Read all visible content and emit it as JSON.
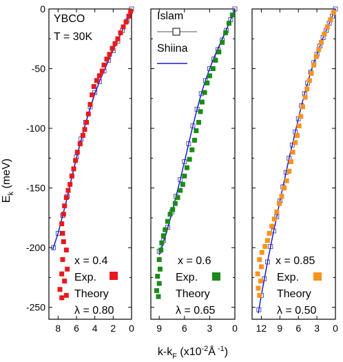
{
  "chart_data": {
    "type": "scatter",
    "ylabel": "E",
    "ylabel_sub": "k",
    "ylabel_unit": "(meV)",
    "xlabel": "k-k",
    "xlabel_sub": "F",
    "xlabel_unit_open": "(x10",
    "xlabel_exp": "-2",
    "xlabel_unit_mid": "Å",
    "xlabel_unit_exp": "-1",
    "xlabel_unit_close": ")",
    "ylim": [
      -260,
      0
    ],
    "yticks": [
      0,
      -50,
      -100,
      -150,
      -200,
      -250
    ],
    "ytick_labels": [
      "0",
      "-50",
      "-100",
      "-150",
      "-200",
      "-250"
    ],
    "panels": [
      {
        "id": "panel-1",
        "xlim": [
          9,
          0
        ],
        "xticks": [
          8,
          6,
          4,
          2,
          0
        ],
        "xtick_labels": [
          "8",
          "6",
          "4",
          "2",
          "0"
        ],
        "exp_color": "#e8191c",
        "texts": {
          "material": "YBCO",
          "temperature": "T = 30K",
          "x_value": "x = 0.4",
          "exp_label": "Exp.",
          "theory_label": "Theory",
          "lambda_value": "λ = 0.80"
        },
        "islam_curve": [
          [
            0,
            0
          ],
          [
            0.5,
            -10
          ],
          [
            1,
            -18
          ],
          [
            1.5,
            -27
          ],
          [
            2,
            -35
          ],
          [
            2.5,
            -43
          ],
          [
            3,
            -52
          ],
          [
            3.5,
            -61
          ],
          [
            4,
            -70
          ],
          [
            4.5,
            -82
          ],
          [
            5,
            -95
          ],
          [
            5.5,
            -109
          ],
          [
            6,
            -124
          ],
          [
            6.5,
            -140
          ],
          [
            7,
            -157
          ],
          [
            7.5,
            -173
          ],
          [
            8,
            -188
          ],
          [
            8.5,
            -200
          ]
        ],
        "shiina_curve": [
          [
            0,
            0
          ],
          [
            0.5,
            -9
          ],
          [
            1,
            -18
          ],
          [
            1.5,
            -26
          ],
          [
            2,
            -34
          ],
          [
            2.5,
            -43
          ],
          [
            3,
            -52
          ],
          [
            3.5,
            -61
          ],
          [
            4,
            -71
          ],
          [
            4.5,
            -83
          ],
          [
            5,
            -96
          ],
          [
            5.5,
            -110
          ],
          [
            6,
            -125
          ],
          [
            6.5,
            -141
          ],
          [
            7,
            -158
          ],
          [
            7.5,
            -173
          ],
          [
            8,
            -188
          ],
          [
            8.6,
            -202
          ]
        ],
        "exp_points": [
          [
            0.1,
            -2
          ],
          [
            0.3,
            -6
          ],
          [
            0.6,
            -11
          ],
          [
            0.9,
            -15
          ],
          [
            1.2,
            -20
          ],
          [
            1.5,
            -25
          ],
          [
            1.8,
            -29
          ],
          [
            2.1,
            -33
          ],
          [
            2.4,
            -38
          ],
          [
            2.7,
            -42
          ],
          [
            3.0,
            -47
          ],
          [
            3.2,
            -52
          ],
          [
            3.5,
            -56
          ],
          [
            3.8,
            -60
          ],
          [
            4.1,
            -65
          ],
          [
            4.3,
            -72
          ],
          [
            4.5,
            -80
          ],
          [
            4.7,
            -88
          ],
          [
            4.9,
            -95
          ],
          [
            5.1,
            -101
          ],
          [
            5.3,
            -106
          ],
          [
            5.6,
            -113
          ],
          [
            5.9,
            -120
          ],
          [
            6.1,
            -127
          ],
          [
            6.3,
            -134
          ],
          [
            6.5,
            -140
          ],
          [
            6.7,
            -147
          ],
          [
            6.9,
            -152
          ],
          [
            7.1,
            -158
          ],
          [
            7.3,
            -165
          ],
          [
            7.4,
            -172
          ],
          [
            7.6,
            -180
          ],
          [
            7.5,
            -188
          ],
          [
            7.4,
            -195
          ],
          [
            7.1,
            -202
          ],
          [
            7.5,
            -210
          ],
          [
            7.0,
            -218
          ],
          [
            7.6,
            -222
          ],
          [
            7.3,
            -228
          ],
          [
            7.8,
            -235
          ],
          [
            7.1,
            -240
          ],
          [
            7.6,
            -242
          ]
        ]
      },
      {
        "id": "panel-2",
        "xlim": [
          10,
          0
        ],
        "xticks": [
          9,
          6,
          3,
          0
        ],
        "xtick_labels": [
          "9",
          "6",
          "3",
          "0"
        ],
        "exp_color": "#1a8a1a",
        "texts": {
          "legend_islam": "Islam",
          "legend_shiina": "Shiina",
          "x_value": "x = 0.6",
          "exp_label": "Exp.",
          "theory_label": "Theory",
          "lambda_value": "λ = 0.65"
        },
        "islam_curve": [
          [
            0,
            0
          ],
          [
            0.5,
            -9
          ],
          [
            1,
            -18
          ],
          [
            1.5,
            -26
          ],
          [
            2,
            -34
          ],
          [
            2.5,
            -42
          ],
          [
            3,
            -50
          ],
          [
            3.5,
            -60
          ],
          [
            4,
            -71
          ],
          [
            4.5,
            -84
          ],
          [
            5,
            -98
          ],
          [
            5.5,
            -113
          ],
          [
            6,
            -128
          ],
          [
            6.5,
            -143
          ],
          [
            7,
            -157
          ],
          [
            7.5,
            -170
          ],
          [
            8,
            -183
          ],
          [
            8.5,
            -194
          ],
          [
            9,
            -203
          ]
        ],
        "shiina_curve": [
          [
            0,
            0
          ],
          [
            0.5,
            -9
          ],
          [
            1,
            -17
          ],
          [
            1.5,
            -25
          ],
          [
            2,
            -33
          ],
          [
            2.5,
            -41
          ],
          [
            3,
            -50
          ],
          [
            3.5,
            -60
          ],
          [
            4,
            -71
          ],
          [
            4.5,
            -84
          ],
          [
            5,
            -98
          ],
          [
            5.5,
            -113
          ],
          [
            6,
            -128
          ],
          [
            6.5,
            -143
          ],
          [
            7,
            -157
          ],
          [
            7.5,
            -171
          ],
          [
            8,
            -184
          ],
          [
            8.5,
            -196
          ],
          [
            9,
            -206
          ]
        ],
        "exp_points": [
          [
            0.3,
            -5
          ],
          [
            0.7,
            -12
          ],
          [
            1.1,
            -20
          ],
          [
            1.5,
            -28
          ],
          [
            1.9,
            -36
          ],
          [
            2.3,
            -43
          ],
          [
            2.6,
            -50
          ],
          [
            3.0,
            -56
          ],
          [
            3.3,
            -62
          ],
          [
            3.6,
            -70
          ],
          [
            3.9,
            -78
          ],
          [
            4.1,
            -86
          ],
          [
            4.3,
            -95
          ],
          [
            4.6,
            -102
          ],
          [
            4.8,
            -110
          ],
          [
            5.1,
            -118
          ],
          [
            5.4,
            -126
          ],
          [
            5.7,
            -133
          ],
          [
            6.0,
            -140
          ],
          [
            6.2,
            -147
          ],
          [
            6.5,
            -152
          ],
          [
            6.8,
            -158
          ],
          [
            7.1,
            -163
          ],
          [
            7.4,
            -168
          ],
          [
            7.7,
            -172
          ],
          [
            8.0,
            -178
          ],
          [
            8.3,
            -185
          ],
          [
            8.5,
            -190
          ],
          [
            8.7,
            -196
          ],
          [
            8.8,
            -202
          ],
          [
            9.0,
            -210
          ],
          [
            8.9,
            -218
          ],
          [
            9.2,
            -224
          ],
          [
            9.0,
            -230
          ],
          [
            9.3,
            -236
          ],
          [
            9.1,
            -241
          ]
        ]
      },
      {
        "id": "panel-3",
        "xlim": [
          13.5,
          0
        ],
        "xticks": [
          12,
          9,
          6,
          3,
          0
        ],
        "xtick_labels": [
          "12",
          "9",
          "6",
          "3",
          "0"
        ],
        "exp_color": "#f7931e",
        "texts": {
          "x_value": "x = 0.85",
          "exp_label": "Exp.",
          "theory_label": "Theory",
          "lambda_value": "λ = 0.50"
        },
        "islam_curve": [
          [
            0,
            0
          ],
          [
            0.5,
            -6
          ],
          [
            1,
            -12
          ],
          [
            1.5,
            -18
          ],
          [
            2,
            -24
          ],
          [
            2.5,
            -31
          ],
          [
            3,
            -38
          ],
          [
            3.5,
            -45
          ],
          [
            4,
            -53
          ],
          [
            4.5,
            -62
          ],
          [
            5,
            -71
          ],
          [
            5.5,
            -81
          ],
          [
            6,
            -92
          ],
          [
            6.5,
            -103
          ],
          [
            7,
            -114
          ],
          [
            7.5,
            -125
          ],
          [
            8,
            -137
          ],
          [
            8.5,
            -149
          ],
          [
            9,
            -161
          ],
          [
            9.5,
            -174
          ],
          [
            10,
            -186
          ],
          [
            10.5,
            -199
          ],
          [
            11,
            -212
          ],
          [
            11.5,
            -226
          ],
          [
            12,
            -240
          ],
          [
            12.4,
            -252
          ]
        ],
        "shiina_curve": [
          [
            0,
            0
          ],
          [
            0.5,
            -6
          ],
          [
            1,
            -12
          ],
          [
            1.5,
            -18
          ],
          [
            2,
            -24
          ],
          [
            2.5,
            -31
          ],
          [
            3,
            -38
          ],
          [
            3.5,
            -45
          ],
          [
            4,
            -53
          ],
          [
            4.5,
            -62
          ],
          [
            5,
            -71
          ],
          [
            5.5,
            -81
          ],
          [
            6,
            -92
          ],
          [
            6.5,
            -103
          ],
          [
            7,
            -114
          ],
          [
            7.5,
            -125
          ],
          [
            8,
            -137
          ],
          [
            8.5,
            -149
          ],
          [
            9,
            -161
          ],
          [
            9.5,
            -174
          ],
          [
            10,
            -186
          ],
          [
            10.5,
            -199
          ],
          [
            11,
            -212
          ],
          [
            11.5,
            -226
          ],
          [
            12,
            -240
          ],
          [
            12.5,
            -255
          ]
        ],
        "exp_points": [
          [
            0.3,
            -3
          ],
          [
            0.8,
            -9
          ],
          [
            1.3,
            -15
          ],
          [
            1.8,
            -21
          ],
          [
            2.3,
            -28
          ],
          [
            2.7,
            -34
          ],
          [
            3.1,
            -40
          ],
          [
            3.5,
            -47
          ],
          [
            3.9,
            -54
          ],
          [
            4.2,
            -60
          ],
          [
            4.6,
            -67
          ],
          [
            4.9,
            -74
          ],
          [
            5.3,
            -82
          ],
          [
            5.6,
            -90
          ],
          [
            5.9,
            -98
          ],
          [
            6.2,
            -106
          ],
          [
            6.5,
            -112
          ],
          [
            6.9,
            -120
          ],
          [
            7.2,
            -128
          ],
          [
            7.5,
            -136
          ],
          [
            7.9,
            -144
          ],
          [
            8.3,
            -150
          ],
          [
            8.7,
            -157
          ],
          [
            9.1,
            -163
          ],
          [
            9.5,
            -170
          ],
          [
            9.9,
            -176
          ],
          [
            10.3,
            -182
          ],
          [
            10.7,
            -188
          ],
          [
            11.0,
            -194
          ],
          [
            11.4,
            -199
          ],
          [
            11.9,
            -204
          ],
          [
            12.3,
            -210
          ],
          [
            12.0,
            -216
          ],
          [
            12.6,
            -222
          ],
          [
            12.1,
            -228
          ],
          [
            12.5,
            -234
          ],
          [
            12.3,
            -240
          ]
        ]
      }
    ]
  }
}
